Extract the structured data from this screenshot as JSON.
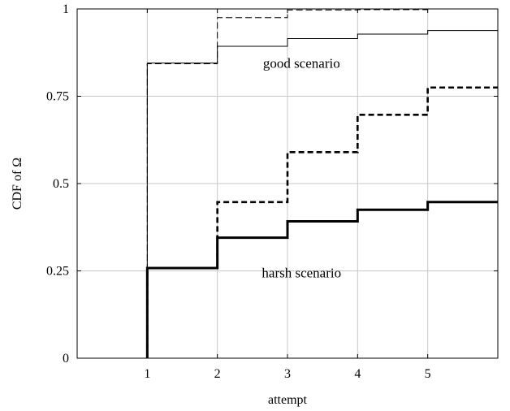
{
  "chart_data": {
    "type": "line",
    "xlabel": "attempt",
    "ylabel": "CDF of Ω",
    "xlim": [
      0,
      6
    ],
    "ylim": [
      0,
      1
    ],
    "x_ticks": [
      1,
      2,
      3,
      4,
      5
    ],
    "y_ticks": [
      0,
      0.25,
      0.5,
      0.75,
      1
    ],
    "y_tick_labels": [
      "0",
      "0.25",
      "0.5",
      "0.75",
      "1"
    ],
    "grid": true,
    "step": true,
    "annotations": [
      {
        "text": "good scenario",
        "x": 3.2,
        "y": 0.845
      },
      {
        "text": "harsh scenario",
        "x": 3.2,
        "y": 0.245
      }
    ],
    "series": [
      {
        "scenario": "good",
        "style": "solid-thin",
        "x": [
          1,
          2,
          3,
          4,
          5
        ],
        "values": [
          0.845,
          0.893,
          0.915,
          0.928,
          0.938
        ]
      },
      {
        "scenario": "good",
        "style": "dashed-thin",
        "x": [
          1,
          2,
          3,
          4,
          5
        ],
        "values": [
          0.843,
          0.975,
          0.997,
          0.998,
          1.0
        ]
      },
      {
        "scenario": "harsh",
        "style": "solid-thick",
        "x": [
          1,
          2,
          3,
          4,
          5
        ],
        "values": [
          0.258,
          0.345,
          0.392,
          0.425,
          0.447
        ]
      },
      {
        "scenario": "harsh",
        "style": "dashed-thick",
        "x": [
          1,
          2,
          3,
          4,
          5
        ],
        "values": [
          0.258,
          0.447,
          0.59,
          0.697,
          0.775
        ]
      }
    ]
  }
}
